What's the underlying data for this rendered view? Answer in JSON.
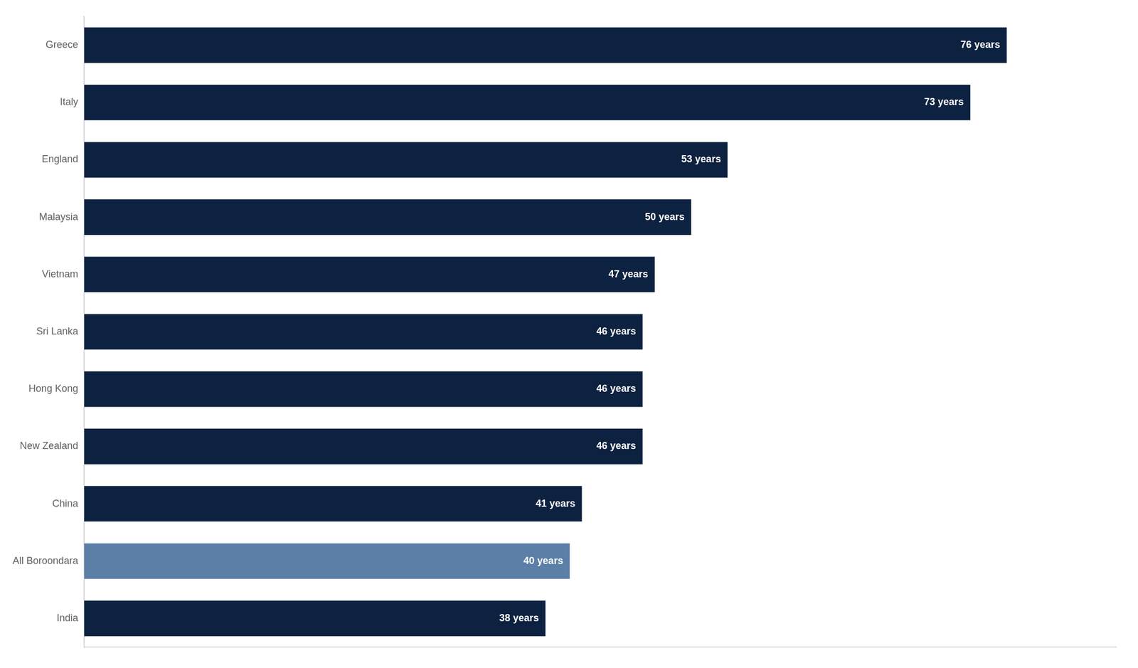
{
  "chart_data": {
    "type": "bar",
    "orientation": "horizontal",
    "categories": [
      "Greece",
      "Italy",
      "England",
      "Malaysia",
      "Vietnam",
      "Sri Lanka",
      "Hong Kong",
      "New Zealand",
      "China",
      "All Boroondara",
      "India"
    ],
    "values": [
      76,
      73,
      53,
      50,
      47,
      46,
      46,
      46,
      41,
      40,
      38
    ],
    "value_labels": [
      "76 years",
      "73 years",
      "53 years",
      "50 years",
      "47 years",
      "46 years",
      "46 years",
      "46 years",
      "41 years",
      "40 years",
      "38 years"
    ],
    "colors": [
      "#0d2240",
      "#0d2240",
      "#0d2240",
      "#0d2240",
      "#0d2240",
      "#0d2240",
      "#0d2240",
      "#0d2240",
      "#0d2240",
      "#5b7fa6",
      "#0d2240"
    ],
    "xlim": [
      0,
      85
    ],
    "grid": false,
    "data_labels": true,
    "tick_labels": "y"
  }
}
